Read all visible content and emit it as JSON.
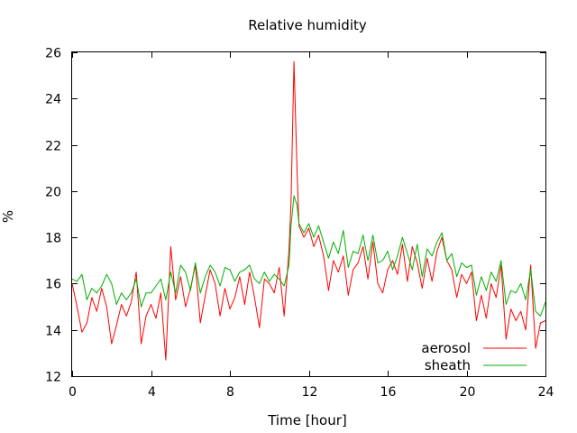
{
  "chart_data": {
    "type": "line",
    "title": "Relative humidity",
    "xlabel": "Time [hour]",
    "ylabel": "%",
    "xlim": [
      0,
      24
    ],
    "ylim": [
      12,
      26
    ],
    "x_ticks": [
      "0",
      "4",
      "8",
      "12",
      "16",
      "20",
      "24"
    ],
    "y_ticks": [
      "12",
      "14",
      "16",
      "18",
      "20",
      "22",
      "24",
      "26"
    ],
    "grid": false,
    "legend_position": "bottom-right",
    "series": [
      {
        "name": "aerosol",
        "color": "#ff0000",
        "x": [
          0,
          0.25,
          0.5,
          0.75,
          1,
          1.25,
          1.5,
          1.75,
          2,
          2.25,
          2.5,
          2.75,
          3,
          3.25,
          3.5,
          3.75,
          4,
          4.25,
          4.5,
          4.75,
          5,
          5.25,
          5.5,
          5.75,
          6,
          6.25,
          6.5,
          6.75,
          7,
          7.25,
          7.5,
          7.75,
          8,
          8.25,
          8.5,
          8.75,
          9,
          9.25,
          9.5,
          9.75,
          10,
          10.25,
          10.5,
          10.75,
          11,
          11.1,
          11.25,
          11.4,
          11.5,
          11.75,
          12,
          12.25,
          12.5,
          12.75,
          13,
          13.25,
          13.5,
          13.75,
          14,
          14.25,
          14.5,
          14.75,
          15,
          15.25,
          15.5,
          15.75,
          16,
          16.25,
          16.5,
          16.75,
          17,
          17.25,
          17.5,
          17.75,
          18,
          18.25,
          18.5,
          18.75,
          19,
          19.25,
          19.5,
          19.75,
          20,
          20.25,
          20.5,
          20.75,
          21,
          21.25,
          21.5,
          21.75,
          22,
          22.25,
          22.5,
          22.75,
          23,
          23.25,
          23.5,
          23.75,
          24
        ],
        "values": [
          16.0,
          15.0,
          13.9,
          14.3,
          15.4,
          14.8,
          15.8,
          15.0,
          13.4,
          14.2,
          15.1,
          14.6,
          15.2,
          16.5,
          13.4,
          14.6,
          15.1,
          14.5,
          15.6,
          12.7,
          17.6,
          15.3,
          16.3,
          15.0,
          15.8,
          16.8,
          14.3,
          15.5,
          16.6,
          16.0,
          14.6,
          15.8,
          14.9,
          15.4,
          16.3,
          15.1,
          16.5,
          15.4,
          14.1,
          16.2,
          16.0,
          15.6,
          16.7,
          14.6,
          17.5,
          19.5,
          25.6,
          21.0,
          18.5,
          18.0,
          18.4,
          17.6,
          18.1,
          17.2,
          15.7,
          17.0,
          16.5,
          17.2,
          15.5,
          16.6,
          16.9,
          17.6,
          16.2,
          17.8,
          16.0,
          15.6,
          16.6,
          17.0,
          16.4,
          17.7,
          16.1,
          17.6,
          16.9,
          15.8,
          17.1,
          16.1,
          17.4,
          18.0,
          17.0,
          16.6,
          15.4,
          16.4,
          16.0,
          16.5,
          14.4,
          15.5,
          14.5,
          16.0,
          15.4,
          16.8,
          13.6,
          14.9,
          14.4,
          14.8,
          14.0,
          16.8,
          13.2,
          14.3,
          14.4
        ]
      },
      {
        "name": "sheath",
        "color": "#00b000",
        "x": [
          0,
          0.25,
          0.5,
          0.75,
          1,
          1.25,
          1.5,
          1.75,
          2,
          2.25,
          2.5,
          2.75,
          3,
          3.25,
          3.5,
          3.75,
          4,
          4.25,
          4.5,
          4.75,
          5,
          5.25,
          5.5,
          5.75,
          6,
          6.25,
          6.5,
          6.75,
          7,
          7.25,
          7.5,
          7.75,
          8,
          8.25,
          8.5,
          8.75,
          9,
          9.25,
          9.5,
          9.75,
          10,
          10.25,
          10.5,
          10.75,
          11,
          11.1,
          11.25,
          11.4,
          11.5,
          11.75,
          12,
          12.25,
          12.5,
          12.75,
          13,
          13.25,
          13.5,
          13.75,
          14,
          14.25,
          14.5,
          14.75,
          15,
          15.25,
          15.5,
          15.75,
          16,
          16.25,
          16.5,
          16.75,
          17,
          17.25,
          17.5,
          17.75,
          18,
          18.25,
          18.5,
          18.75,
          19,
          19.25,
          19.5,
          19.75,
          20,
          20.25,
          20.5,
          20.75,
          21,
          21.25,
          21.5,
          21.75,
          22,
          22.25,
          22.5,
          22.75,
          23,
          23.25,
          23.5,
          23.75,
          24
        ],
        "values": [
          16.2,
          16.1,
          16.4,
          15.3,
          15.8,
          15.6,
          15.9,
          16.4,
          16.0,
          15.1,
          15.6,
          15.3,
          15.6,
          16.2,
          15.0,
          15.6,
          15.6,
          15.9,
          16.2,
          15.3,
          16.5,
          15.6,
          16.8,
          16.5,
          15.7,
          16.9,
          15.6,
          16.3,
          16.8,
          16.5,
          15.9,
          16.7,
          16.6,
          16.1,
          16.5,
          16.6,
          16.8,
          16.2,
          16.0,
          16.5,
          16.1,
          16.4,
          16.2,
          15.9,
          16.8,
          18.5,
          19.8,
          19.4,
          18.6,
          18.2,
          18.6,
          18.0,
          18.5,
          17.8,
          17.1,
          17.8,
          17.3,
          18.3,
          16.7,
          17.4,
          17.3,
          18.1,
          17.0,
          18.1,
          16.9,
          17.0,
          17.4,
          16.6,
          17.2,
          18.0,
          17.3,
          16.6,
          17.7,
          16.3,
          17.5,
          17.2,
          17.8,
          18.2,
          17.0,
          17.3,
          16.3,
          16.9,
          16.7,
          16.8,
          15.5,
          16.3,
          15.7,
          16.5,
          16.1,
          17.0,
          15.1,
          15.7,
          15.6,
          16.0,
          15.3,
          16.6,
          14.8,
          14.6,
          15.2
        ]
      }
    ]
  }
}
